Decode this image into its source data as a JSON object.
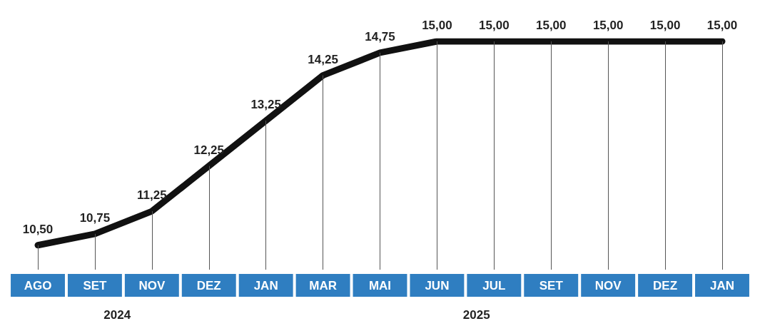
{
  "chart_data": {
    "type": "line",
    "categories": [
      "AGO",
      "SET",
      "NOV",
      "DEZ",
      "JAN",
      "MAR",
      "MAI",
      "JUN",
      "JUL",
      "SET",
      "NOV",
      "DEZ",
      "JAN"
    ],
    "series": [
      {
        "color": "#111111",
        "values": [
          10.5,
          10.75,
          11.25,
          12.25,
          13.25,
          14.25,
          14.75,
          15,
          15,
          15,
          15,
          15,
          15
        ],
        "value_labels": [
          "10,50",
          "10,75",
          "11,25",
          "12,25",
          "13,25",
          "14,25",
          "14,75",
          "15,00",
          "15,00",
          "15,00",
          "15,00",
          "15,00",
          "15,00"
        ]
      }
    ],
    "annotations": [
      "2024",
      "2025"
    ],
    "marker": "none",
    "line_style": "solid",
    "grid": "x"
  }
}
